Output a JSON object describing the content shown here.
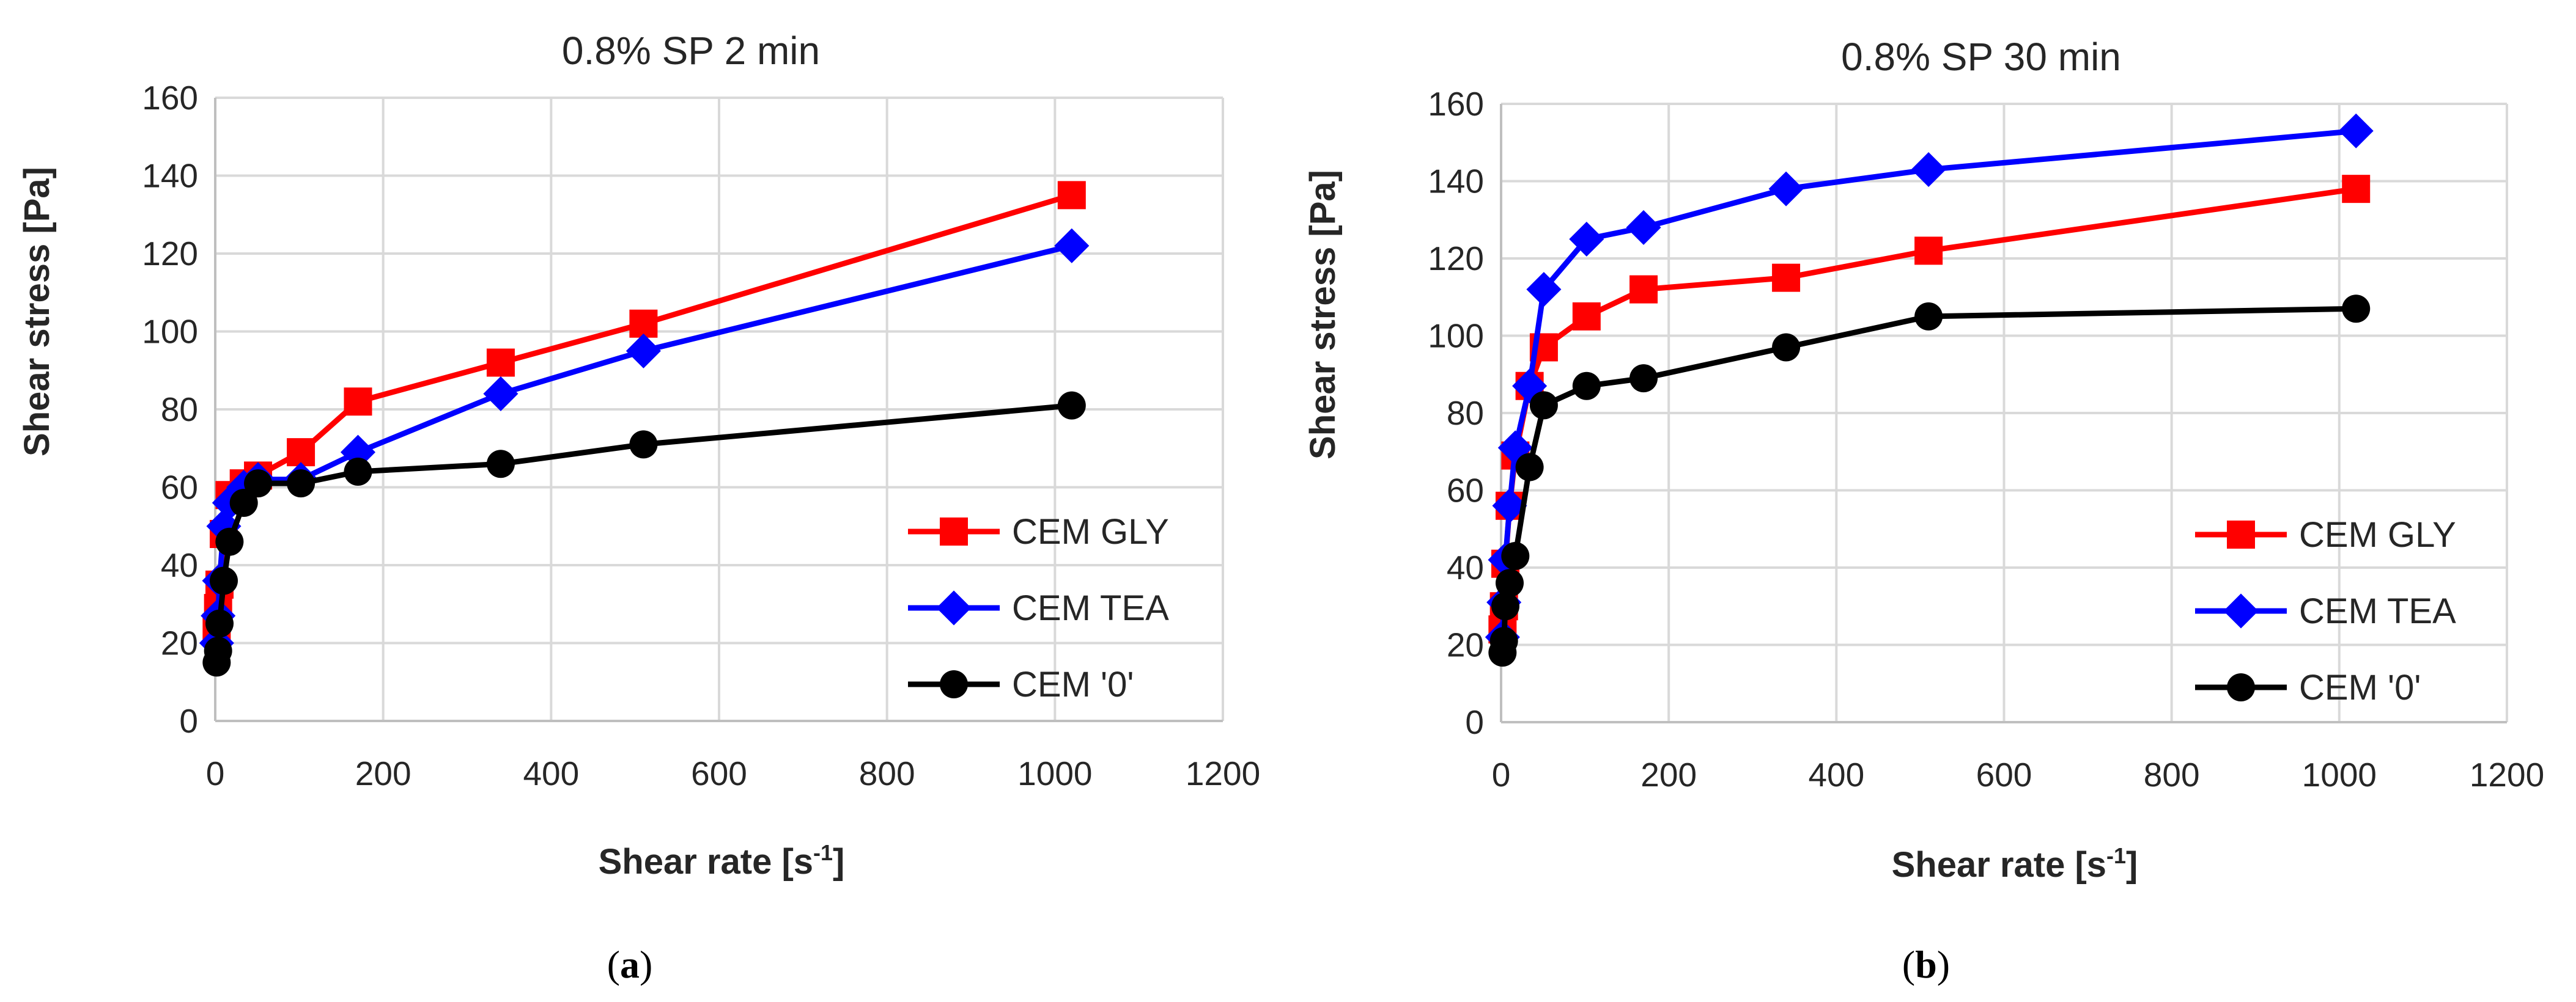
{
  "colors": {
    "gly": "#ff0000",
    "tea": "#0000ff",
    "zero": "#000000"
  },
  "chart_data": [
    {
      "type": "line",
      "title": "0.8% SP 2 min",
      "caption_letter": "a",
      "xlabel_base": "Shear rate [s",
      "xlabel_sup": "-1",
      "xlabel_end": "]",
      "ylabel": "Shear stress [Pa]",
      "xlim": [
        0,
        1200
      ],
      "ylim": [
        0,
        160
      ],
      "xticks": [
        "0",
        "200",
        "400",
        "600",
        "800",
        "1000",
        "1200"
      ],
      "yticks": [
        "0",
        "20",
        "40",
        "60",
        "80",
        "100",
        "120",
        "140",
        "160"
      ],
      "legend_position": "lower-right",
      "series": [
        {
          "name": "CEM GLY",
          "marker": "square",
          "color_key": "gly",
          "x": [
            1.7,
            3.4,
            5.1,
            10.2,
            17,
            34,
            51,
            102,
            170,
            340,
            510,
            1020
          ],
          "y": [
            24,
            29,
            35,
            48,
            58,
            61,
            63,
            69,
            82,
            92,
            102,
            135
          ]
        },
        {
          "name": "CEM TEA",
          "marker": "diamond",
          "color_key": "tea",
          "x": [
            1.7,
            3.4,
            5.1,
            10.2,
            17,
            34,
            51,
            102,
            170,
            340,
            510,
            1020
          ],
          "y": [
            20,
            27,
            36,
            50,
            56,
            60,
            62,
            62,
            69,
            84,
            95,
            122
          ]
        },
        {
          "name": "CEM '0'",
          "marker": "circle",
          "color_key": "zero",
          "x": [
            1.7,
            3.4,
            5.1,
            10.2,
            17,
            34,
            51,
            102,
            170,
            340,
            510,
            1020
          ],
          "y": [
            15,
            18,
            25,
            36,
            46,
            56,
            61,
            61,
            64,
            66,
            71,
            81
          ]
        }
      ]
    },
    {
      "type": "line",
      "title": "0.8% SP 30 min",
      "caption_letter": "b",
      "xlabel_base": "Shear rate [s",
      "xlabel_sup": "-1",
      "xlabel_end": "]",
      "ylabel": "Shear stress [Pa]",
      "xlim": [
        0,
        1200
      ],
      "ylim": [
        0,
        160
      ],
      "xticks": [
        "0",
        "200",
        "400",
        "600",
        "800",
        "1000",
        "1200"
      ],
      "yticks": [
        "0",
        "20",
        "40",
        "60",
        "80",
        "100",
        "120",
        "140",
        "160"
      ],
      "legend_position": "lower-right",
      "series": [
        {
          "name": "CEM GLY",
          "marker": "square",
          "color_key": "gly",
          "x": [
            1.7,
            3.4,
            5.1,
            10.2,
            17,
            34,
            51,
            102,
            170,
            340,
            510,
            1020
          ],
          "y": [
            24,
            30,
            41,
            56,
            69,
            87,
            97,
            105,
            112,
            115,
            122,
            138
          ]
        },
        {
          "name": "CEM TEA",
          "marker": "diamond",
          "color_key": "tea",
          "x": [
            1.7,
            3.4,
            5.1,
            10.2,
            17,
            34,
            51,
            102,
            170,
            340,
            510,
            1020
          ],
          "y": [
            22,
            31,
            42,
            56,
            71,
            87,
            112,
            125,
            128,
            138,
            143,
            153
          ]
        },
        {
          "name": "CEM '0'",
          "marker": "circle",
          "color_key": "zero",
          "x": [
            1.7,
            3.4,
            5.1,
            10.2,
            17,
            34,
            51,
            102,
            170,
            340,
            510,
            1020
          ],
          "y": [
            18,
            21,
            30,
            36,
            43,
            66,
            82,
            87,
            89,
            97,
            105,
            107
          ]
        }
      ]
    }
  ]
}
